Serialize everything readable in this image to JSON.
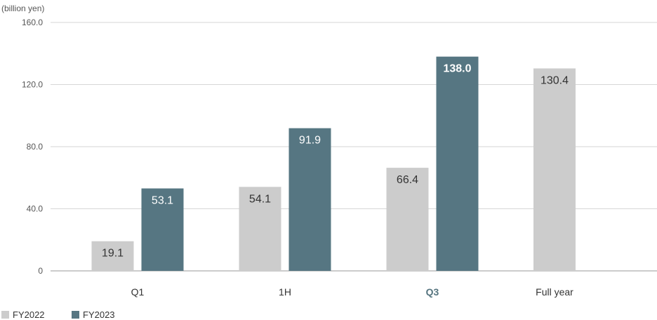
{
  "chart_data": {
    "type": "bar",
    "unit_label": "(billion yen)",
    "categories": [
      "Q1",
      "1H",
      "Q3",
      "Full year"
    ],
    "highlight_category": "Q3",
    "series": [
      {
        "name": "FY2022",
        "color": "#cccccc",
        "values": [
          19.1,
          54.1,
          66.4,
          130.4
        ],
        "labels": [
          "19.1",
          "54.1",
          "66.4",
          "130.4"
        ]
      },
      {
        "name": "FY2023",
        "color": "#567682",
        "values": [
          53.1,
          91.9,
          138.0,
          null
        ],
        "labels": [
          "53.1",
          "91.9",
          "138.0",
          null
        ]
      }
    ],
    "ylim": [
      0,
      160
    ],
    "yticks": [
      {
        "value": 0,
        "label": "0"
      },
      {
        "value": 40,
        "label": "40.0"
      },
      {
        "value": 80,
        "label": "80.0"
      },
      {
        "value": 120,
        "label": "120.0"
      },
      {
        "value": 160,
        "label": "160.0"
      }
    ],
    "grid": true,
    "legend_position": "bottom-left"
  }
}
